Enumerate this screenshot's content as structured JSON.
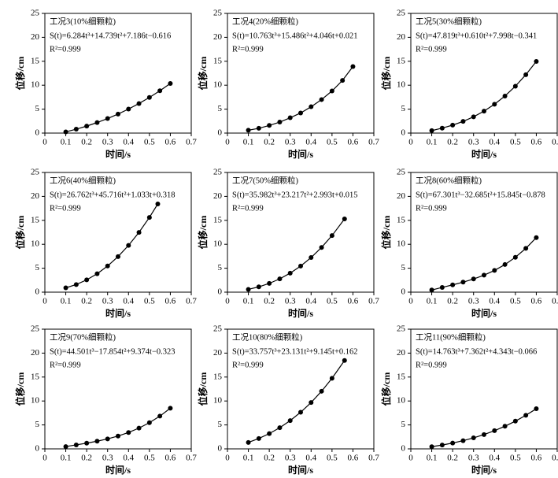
{
  "chart_data": [
    {
      "type": "scatter",
      "title": "工况3(10%细颗粒)",
      "annotations": [
        "S(t)=6.284t³+14.739t²+7.186t−0.616",
        "R²=0.999"
      ],
      "x_label": "时间/s",
      "y_label": "位移/cm",
      "color": "#000000",
      "x": [
        0.1,
        0.15,
        0.2,
        0.25,
        0.3,
        0.35,
        0.4,
        0.45,
        0.5,
        0.55,
        0.6
      ],
      "values": [
        0.256,
        0.815,
        1.461,
        2.2,
        3.036,
        3.974,
        5.019,
        6.175,
        7.447,
        8.84,
        10.359
      ],
      "xlim": [
        0,
        0.7
      ],
      "xticks": [
        0,
        0.1,
        0.2,
        0.3,
        0.4,
        0.5,
        0.6,
        0.7
      ],
      "ylim": [
        0,
        25
      ],
      "yticks": [
        0,
        5,
        10,
        15,
        20,
        25
      ]
    },
    {
      "type": "scatter",
      "title": "工况4(20%细颗粒)",
      "annotations": [
        "S(t)=10.763t³+15.486t²+4.046t+0.021",
        "R²=0.999"
      ],
      "x_label": "时间/s",
      "y_label": "位移/cm",
      "color": "#000000",
      "x": [
        0.1,
        0.15,
        0.2,
        0.25,
        0.3,
        0.35,
        0.4,
        0.45,
        0.5,
        0.55,
        0.6
      ],
      "values": [
        0.6,
        1.0,
        1.6,
        2.3,
        3.2,
        4.2,
        5.5,
        7.0,
        8.8,
        11.0,
        13.9
      ],
      "xlim": [
        0,
        0.7
      ],
      "xticks": [
        0,
        0.1,
        0.2,
        0.3,
        0.4,
        0.5,
        0.6,
        0.7
      ],
      "ylim": [
        0,
        25
      ],
      "yticks": [
        0,
        5,
        10,
        15,
        20,
        25
      ]
    },
    {
      "type": "scatter",
      "title": "工况5(30%细颗粒)",
      "annotations": [
        "S(t)=47.819t³+0.610t²+7.998t−0.341",
        "R²=0.999"
      ],
      "x_label": "时间/s",
      "y_label": "位移/cm",
      "color": "#000000",
      "x": [
        0.1,
        0.15,
        0.2,
        0.25,
        0.3,
        0.35,
        0.4,
        0.45,
        0.5,
        0.55,
        0.6
      ],
      "values": [
        0.513,
        1.034,
        1.665,
        2.444,
        3.4,
        4.583,
        6.02,
        7.739,
        9.79,
        12.198,
        14.96
      ],
      "xlim": [
        0,
        0.7
      ],
      "xticks": [
        0,
        0.1,
        0.2,
        0.3,
        0.4,
        0.5,
        0.6,
        0.7
      ],
      "ylim": [
        0,
        25
      ],
      "yticks": [
        0,
        5,
        10,
        15,
        20,
        25
      ]
    },
    {
      "type": "scatter",
      "title": "工况6(40%细颗粒)",
      "annotations": [
        "S(t)=26.762t³+45.716t²+1.033t+0.318",
        "R²=0.999"
      ],
      "x_label": "时间/s",
      "y_label": "位移/cm",
      "color": "#000000",
      "x": [
        0.1,
        0.15,
        0.2,
        0.25,
        0.3,
        0.35,
        0.4,
        0.45,
        0.5,
        0.54
      ],
      "values": [
        0.905,
        1.592,
        2.567,
        3.852,
        5.465,
        7.427,
        9.759,
        12.479,
        15.609,
        18.421
      ],
      "xlim": [
        0,
        0.7
      ],
      "xticks": [
        0,
        0.1,
        0.2,
        0.3,
        0.4,
        0.5,
        0.6,
        0.7
      ],
      "ylim": [
        0,
        25
      ],
      "yticks": [
        0,
        5,
        10,
        15,
        20,
        25
      ]
    },
    {
      "type": "scatter",
      "title": "工况7(50%细颗粒)",
      "annotations": [
        "S(t)=35.982t³+23.217t²+2.993t+0.015",
        "R²=0.999"
      ],
      "x_label": "时间/s",
      "y_label": "位移/cm",
      "color": "#000000",
      "x": [
        0.1,
        0.15,
        0.2,
        0.25,
        0.3,
        0.35,
        0.4,
        0.45,
        0.5,
        0.56
      ],
      "values": [
        0.582,
        1.108,
        1.83,
        2.777,
        3.974,
        5.449,
        7.23,
        9.342,
        11.813,
        15.291
      ],
      "xlim": [
        0,
        0.7
      ],
      "xticks": [
        0,
        0.1,
        0.2,
        0.3,
        0.4,
        0.5,
        0.6,
        0.7
      ],
      "ylim": [
        0,
        25
      ],
      "yticks": [
        0,
        5,
        10,
        15,
        20,
        25
      ]
    },
    {
      "type": "scatter",
      "title": "工况8(60%细颗粒)",
      "annotations": [
        "S(t)=67.301t³−32.685t²+15.845t−0.878",
        "R²=0.999"
      ],
      "x_label": "时间/s",
      "y_label": "位移/cm",
      "color": "#000000",
      "x": [
        0.1,
        0.15,
        0.2,
        0.25,
        0.3,
        0.35,
        0.4,
        0.45,
        0.5,
        0.55,
        0.6
      ],
      "values": [
        0.447,
        0.991,
        1.522,
        2.092,
        2.751,
        3.549,
        4.538,
        5.767,
        7.286,
        9.147,
        11.399
      ],
      "xlim": [
        0,
        0.7
      ],
      "xticks": [
        0,
        0.1,
        0.2,
        0.3,
        0.4,
        0.5,
        0.6,
        0.7
      ],
      "ylim": [
        0,
        25
      ],
      "yticks": [
        0,
        5,
        10,
        15,
        20,
        25
      ]
    },
    {
      "type": "scatter",
      "title": "工况9(70%细颗粒)",
      "annotations": [
        "S(t)=44.501t³−17.854t²+9.374t−0.323",
        "R²=0.999"
      ],
      "x_label": "时间/s",
      "y_label": "位移/cm",
      "color": "#000000",
      "x": [
        0.1,
        0.15,
        0.2,
        0.25,
        0.3,
        0.35,
        0.4,
        0.45,
        0.5,
        0.55,
        0.6
      ],
      "values": [
        0.48,
        0.832,
        1.194,
        1.6,
        2.084,
        2.679,
        3.418,
        4.335,
        5.463,
        6.836,
        8.486
      ],
      "xlim": [
        0,
        0.7
      ],
      "xticks": [
        0,
        0.1,
        0.2,
        0.3,
        0.4,
        0.5,
        0.6,
        0.7
      ],
      "ylim": [
        0,
        25
      ],
      "yticks": [
        0,
        5,
        10,
        15,
        20,
        25
      ]
    },
    {
      "type": "scatter",
      "title": "工况10(80%细颗粒)",
      "annotations": [
        "S(t)=33.757t³+23.131t²+9.145t+0.162",
        "R²=0.999"
      ],
      "x_label": "时间/s",
      "y_label": "位移/cm",
      "color": "#000000",
      "x": [
        0.1,
        0.15,
        0.2,
        0.25,
        0.3,
        0.35,
        0.4,
        0.45,
        0.5,
        0.56
      ],
      "values": [
        1.342,
        2.168,
        3.186,
        4.421,
        5.899,
        7.644,
        9.681,
        12.037,
        14.737,
        18.465
      ],
      "xlim": [
        0,
        0.7
      ],
      "xticks": [
        0,
        0.1,
        0.2,
        0.3,
        0.4,
        0.5,
        0.6,
        0.7
      ],
      "ylim": [
        0,
        25
      ],
      "yticks": [
        0,
        5,
        10,
        15,
        20,
        25
      ]
    },
    {
      "type": "scatter",
      "title": "工况11(90%细颗粒)",
      "annotations": [
        "S(t)=14.763t³+7.362t²+4.343t−0.066",
        "R²=0.999"
      ],
      "x_label": "时间/s",
      "y_label": "位移/cm",
      "color": "#000000",
      "x": [
        0.1,
        0.15,
        0.2,
        0.25,
        0.3,
        0.35,
        0.4,
        0.45,
        0.5,
        0.55,
        0.6
      ],
      "values": [
        0.457,
        0.801,
        1.215,
        1.711,
        2.298,
        2.989,
        3.794,
        4.725,
        5.791,
        7.006,
        8.379
      ],
      "xlim": [
        0,
        0.7
      ],
      "xticks": [
        0,
        0.1,
        0.2,
        0.3,
        0.4,
        0.5,
        0.6,
        0.7
      ],
      "ylim": [
        0,
        25
      ],
      "yticks": [
        0,
        5,
        10,
        15,
        20,
        25
      ]
    }
  ]
}
